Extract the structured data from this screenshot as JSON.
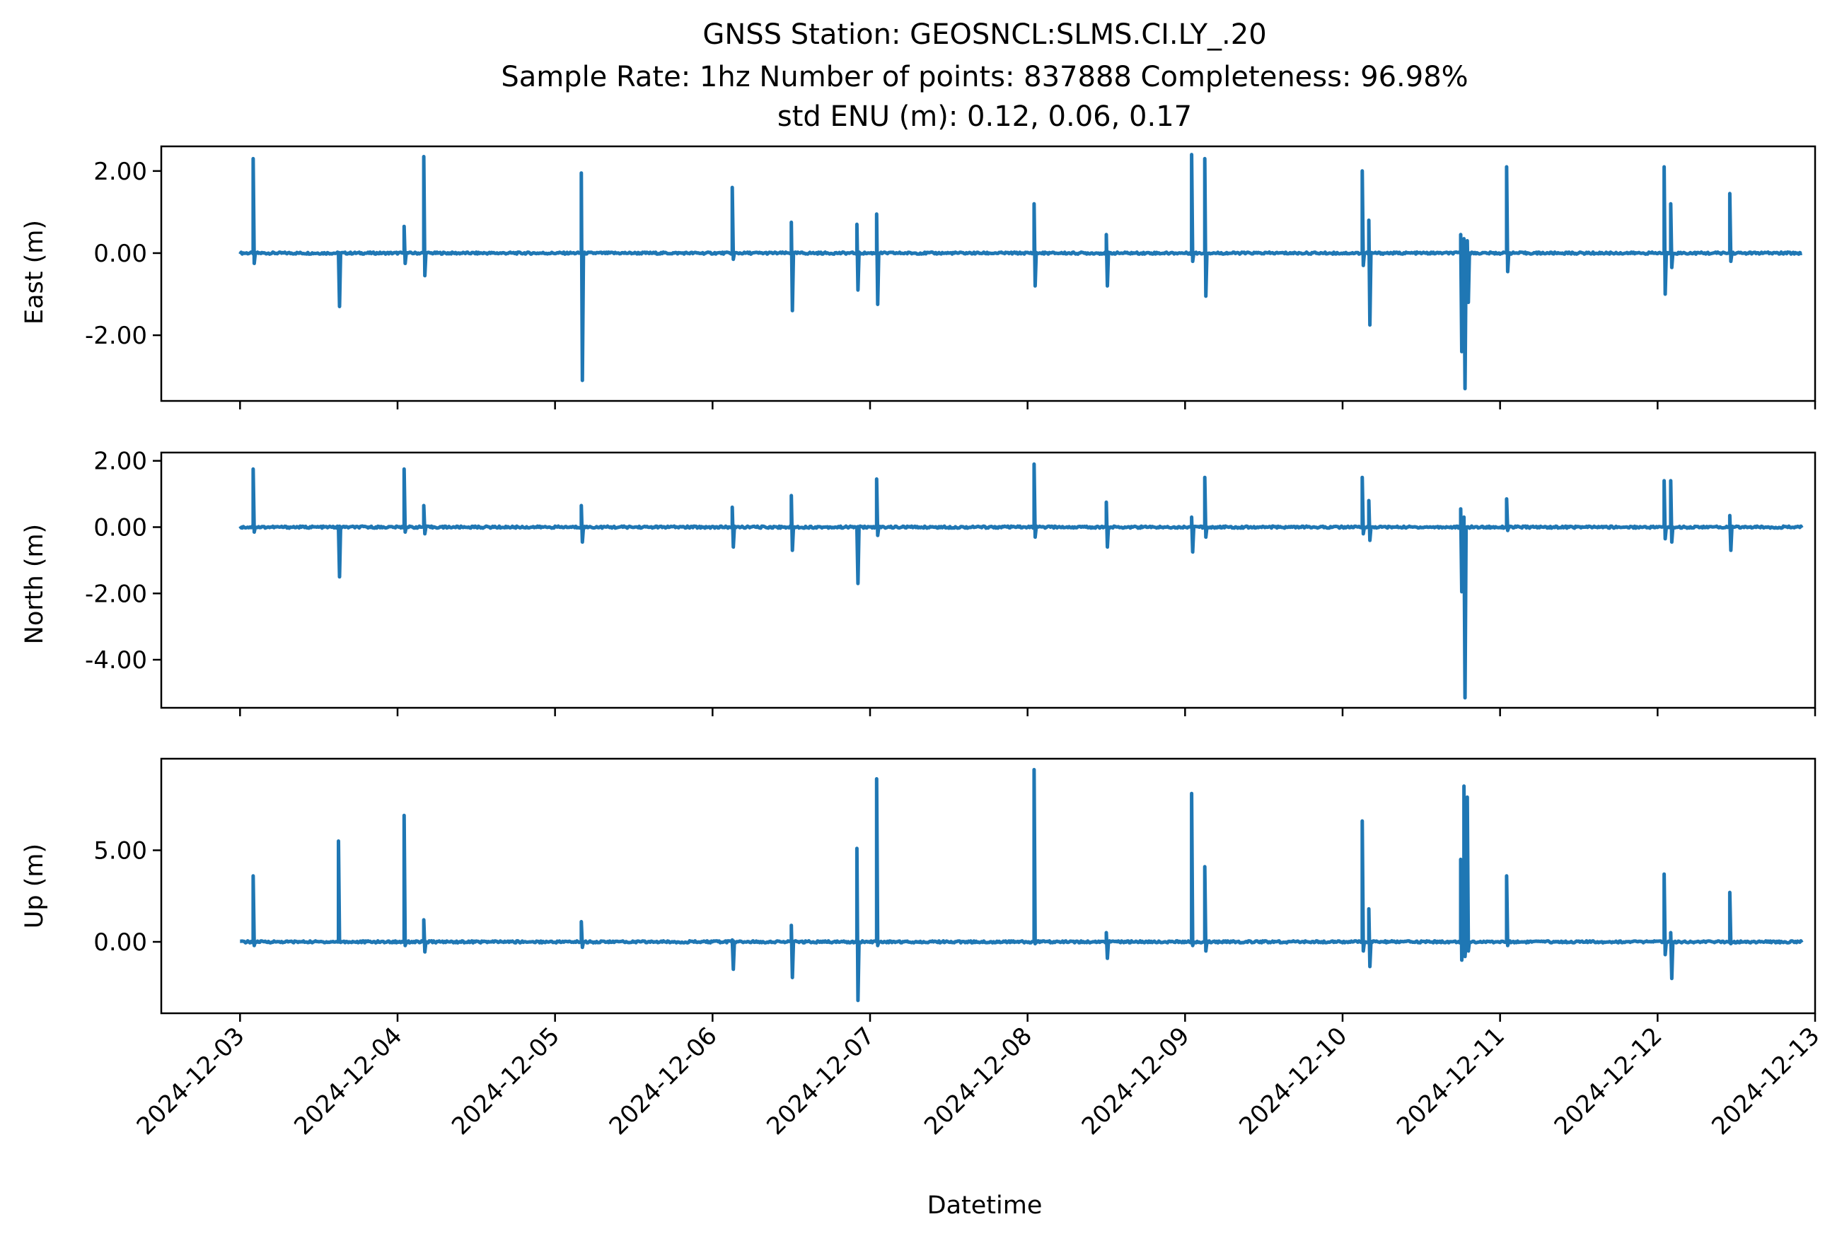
{
  "figure": {
    "title_line1": "GNSS Station: GEOSNCL:SLMS.CI.LY_.20",
    "title_line2": "Sample Rate: 1hz   Number of points: 837888    Completeness:  96.98%",
    "title_line3": "std ENU (m):  0.12, 0.06, 0.17",
    "line_color": "#1f77b4"
  },
  "chart_data": [
    {
      "type": "line",
      "ylabel": "East (m)",
      "xlabel": "",
      "xlim": [
        "2024-12-02T12:00",
        "2024-12-13T00:00"
      ],
      "ylim": [
        -3.6,
        2.6
      ],
      "yticks": [
        2.0,
        0.0,
        -2.0
      ],
      "ytick_labels": [
        "2.00",
        "0.00",
        "-2.00"
      ],
      "show_x_tick_labels": false,
      "baseline": 0.0,
      "data_range": [
        "2024-12-03T00:00",
        "2024-12-12T22:00"
      ],
      "spikes": [
        {
          "t": "2024-12-03T02:00",
          "max": 2.3,
          "min": -0.25
        },
        {
          "t": "2024-12-03T15:00",
          "max": 0.0,
          "min": -1.3
        },
        {
          "t": "2024-12-04T01:00",
          "max": 0.65,
          "min": -0.25
        },
        {
          "t": "2024-12-04T04:00",
          "max": 2.35,
          "min": -0.55
        },
        {
          "t": "2024-12-05T04:00",
          "max": 1.95,
          "min": -3.1
        },
        {
          "t": "2024-12-06T03:00",
          "max": 1.6,
          "min": -0.15
        },
        {
          "t": "2024-12-06T12:00",
          "max": 0.75,
          "min": -1.4
        },
        {
          "t": "2024-12-06T22:00",
          "max": 0.7,
          "min": -0.9
        },
        {
          "t": "2024-12-07T01:00",
          "max": 0.95,
          "min": -1.25
        },
        {
          "t": "2024-12-08T01:00",
          "max": 1.2,
          "min": -0.8
        },
        {
          "t": "2024-12-08T12:00",
          "max": 0.45,
          "min": -0.8
        },
        {
          "t": "2024-12-09T01:00",
          "max": 2.4,
          "min": -0.2
        },
        {
          "t": "2024-12-09T03:00",
          "max": 2.3,
          "min": -1.05
        },
        {
          "t": "2024-12-10T03:00",
          "max": 2.0,
          "min": -0.3
        },
        {
          "t": "2024-12-10T04:00",
          "max": 0.8,
          "min": -1.75
        },
        {
          "t": "2024-12-10T18:00",
          "max": 0.45,
          "min": -2.4
        },
        {
          "t": "2024-12-10T18:30",
          "max": 0.35,
          "min": -3.3
        },
        {
          "t": "2024-12-10T19:00",
          "max": 0.3,
          "min": -1.2
        },
        {
          "t": "2024-12-11T01:00",
          "max": 2.1,
          "min": -0.45
        },
        {
          "t": "2024-12-12T01:00",
          "max": 2.1,
          "min": -1.0
        },
        {
          "t": "2024-12-12T02:00",
          "max": 1.2,
          "min": -0.35
        },
        {
          "t": "2024-12-12T11:00",
          "max": 1.45,
          "min": -0.2
        }
      ]
    },
    {
      "type": "line",
      "ylabel": "North (m)",
      "xlabel": "",
      "xlim": [
        "2024-12-02T12:00",
        "2024-12-13T00:00"
      ],
      "ylim": [
        -5.45,
        2.25
      ],
      "yticks": [
        2.0,
        0.0,
        -2.0,
        -4.0
      ],
      "ytick_labels": [
        "2.00",
        "0.00",
        "-2.00",
        "-4.00"
      ],
      "show_x_tick_labels": false,
      "baseline": 0.0,
      "data_range": [
        "2024-12-03T00:00",
        "2024-12-12T22:00"
      ],
      "spikes": [
        {
          "t": "2024-12-03T02:00",
          "max": 1.75,
          "min": -0.15
        },
        {
          "t": "2024-12-03T15:00",
          "max": 0.0,
          "min": -1.5
        },
        {
          "t": "2024-12-04T01:00",
          "max": 1.75,
          "min": -0.15
        },
        {
          "t": "2024-12-04T04:00",
          "max": 0.65,
          "min": -0.2
        },
        {
          "t": "2024-12-05T04:00",
          "max": 0.65,
          "min": -0.45
        },
        {
          "t": "2024-12-06T03:00",
          "max": 0.6,
          "min": -0.6
        },
        {
          "t": "2024-12-06T12:00",
          "max": 0.95,
          "min": -0.7
        },
        {
          "t": "2024-12-06T22:00",
          "max": 0.0,
          "min": -1.7
        },
        {
          "t": "2024-12-07T01:00",
          "max": 1.45,
          "min": -0.25
        },
        {
          "t": "2024-12-08T01:00",
          "max": 1.9,
          "min": -0.3
        },
        {
          "t": "2024-12-08T12:00",
          "max": 0.75,
          "min": -0.6
        },
        {
          "t": "2024-12-09T01:00",
          "max": 0.3,
          "min": -0.75
        },
        {
          "t": "2024-12-09T03:00",
          "max": 1.5,
          "min": -0.3
        },
        {
          "t": "2024-12-10T03:00",
          "max": 1.5,
          "min": -0.2
        },
        {
          "t": "2024-12-10T04:00",
          "max": 0.8,
          "min": -0.4
        },
        {
          "t": "2024-12-10T18:00",
          "max": 0.55,
          "min": -1.95
        },
        {
          "t": "2024-12-10T18:30",
          "max": 0.3,
          "min": -5.15
        },
        {
          "t": "2024-12-11T01:00",
          "max": 0.85,
          "min": -0.1
        },
        {
          "t": "2024-12-12T01:00",
          "max": 1.4,
          "min": -0.35
        },
        {
          "t": "2024-12-12T02:00",
          "max": 1.4,
          "min": -0.45
        },
        {
          "t": "2024-12-12T11:00",
          "max": 0.35,
          "min": -0.7
        }
      ]
    },
    {
      "type": "line",
      "ylabel": "Up (m)",
      "xlabel": "Datetime",
      "xlim": [
        "2024-12-02T12:00",
        "2024-12-13T00:00"
      ],
      "ylim": [
        -3.9,
        10.0
      ],
      "yticks": [
        5.0,
        0.0
      ],
      "ytick_labels": [
        "5.00",
        "0.00"
      ],
      "show_x_tick_labels": true,
      "xticks": [
        "2024-12-03",
        "2024-12-04",
        "2024-12-05",
        "2024-12-06",
        "2024-12-07",
        "2024-12-08",
        "2024-12-09",
        "2024-12-10",
        "2024-12-11",
        "2024-12-12",
        "2024-12-13"
      ],
      "baseline": 0.0,
      "data_range": [
        "2024-12-03T00:00",
        "2024-12-12T22:00"
      ],
      "spikes": [
        {
          "t": "2024-12-03T02:00",
          "max": 3.6,
          "min": -0.2
        },
        {
          "t": "2024-12-03T15:00",
          "max": 5.5,
          "min": 0.0
        },
        {
          "t": "2024-12-04T01:00",
          "max": 6.9,
          "min": -0.2
        },
        {
          "t": "2024-12-04T04:00",
          "max": 1.2,
          "min": -0.55
        },
        {
          "t": "2024-12-05T04:00",
          "max": 1.1,
          "min": -0.3
        },
        {
          "t": "2024-12-06T03:00",
          "max": 0.1,
          "min": -1.5
        },
        {
          "t": "2024-12-06T12:00",
          "max": 0.9,
          "min": -1.95
        },
        {
          "t": "2024-12-06T22:00",
          "max": 5.1,
          "min": -3.2
        },
        {
          "t": "2024-12-07T01:00",
          "max": 8.9,
          "min": -0.2
        },
        {
          "t": "2024-12-08T01:00",
          "max": 9.4,
          "min": -0.1
        },
        {
          "t": "2024-12-08T12:00",
          "max": 0.5,
          "min": -0.9
        },
        {
          "t": "2024-12-09T01:00",
          "max": 8.1,
          "min": -0.2
        },
        {
          "t": "2024-12-09T03:00",
          "max": 4.1,
          "min": -0.5
        },
        {
          "t": "2024-12-10T03:00",
          "max": 6.6,
          "min": -0.5
        },
        {
          "t": "2024-12-10T04:00",
          "max": 1.8,
          "min": -1.35
        },
        {
          "t": "2024-12-10T18:00",
          "max": 4.5,
          "min": -1.0
        },
        {
          "t": "2024-12-10T18:30",
          "max": 8.5,
          "min": -0.8
        },
        {
          "t": "2024-12-10T19:00",
          "max": 7.9,
          "min": -0.5
        },
        {
          "t": "2024-12-11T01:00",
          "max": 3.6,
          "min": -0.2
        },
        {
          "t": "2024-12-12T01:00",
          "max": 3.7,
          "min": -0.7
        },
        {
          "t": "2024-12-12T02:00",
          "max": 0.5,
          "min": -2.0
        },
        {
          "t": "2024-12-12T11:00",
          "max": 2.7,
          "min": -0.1
        }
      ]
    }
  ]
}
